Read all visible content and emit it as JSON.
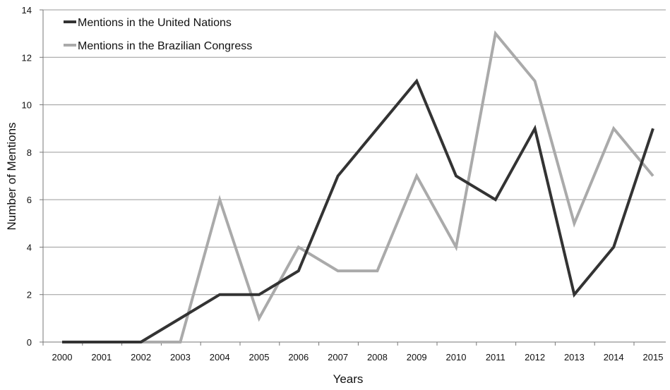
{
  "chart_data": {
    "type": "line",
    "title": "",
    "xlabel": "Years",
    "ylabel": "Number of Mentions",
    "categories": [
      "2000",
      "2001",
      "2002",
      "2003",
      "2004",
      "2005",
      "2006",
      "2007",
      "2008",
      "2009",
      "2010",
      "2011",
      "2012",
      "2013",
      "2014",
      "2015"
    ],
    "ylim": [
      0,
      14
    ],
    "yticks": [
      "0",
      "2",
      "4",
      "6",
      "8",
      "10",
      "12",
      "14"
    ],
    "grid": "horizontal",
    "legend_position": "top-left",
    "series": [
      {
        "name": "Mentions in the United Nations",
        "color": "#333333",
        "values": [
          0,
          0,
          0,
          1,
          2,
          2,
          3,
          7,
          9,
          11,
          7,
          6,
          9,
          2,
          4,
          9
        ]
      },
      {
        "name": "Mentions in the Brazilian Congress",
        "color": "#aaaaaa",
        "values": [
          0,
          0,
          0,
          0,
          6,
          1,
          4,
          3,
          3,
          7,
          4,
          13,
          11,
          5,
          9,
          7
        ]
      }
    ]
  }
}
